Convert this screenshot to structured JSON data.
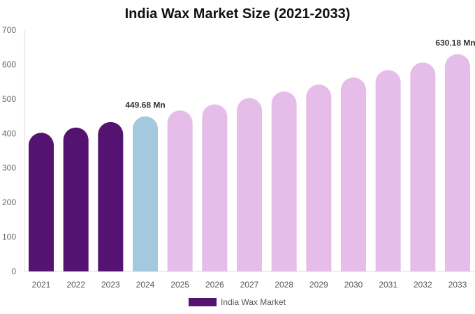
{
  "chart_data": {
    "type": "bar",
    "title": "India Wax Market Size (2021-2033)",
    "xlabel": "",
    "ylabel": "",
    "ylim": [
      0,
      700
    ],
    "yticks": [
      0,
      100,
      200,
      300,
      400,
      500,
      600,
      700
    ],
    "grid": false,
    "legend_position": "bottom",
    "categories": [
      "2021",
      "2022",
      "2023",
      "2024",
      "2025",
      "2026",
      "2027",
      "2028",
      "2029",
      "2030",
      "2031",
      "2032",
      "2033"
    ],
    "series": [
      {
        "name": "India Wax Market",
        "values": [
          402.0,
          417.3,
          433.2,
          449.68,
          466.8,
          484.5,
          502.9,
          522.0,
          541.9,
          562.5,
          583.9,
          606.0,
          630.18
        ]
      }
    ],
    "data_labels": [
      {
        "category": "2024",
        "text": "449.68 Mn"
      },
      {
        "category": "2033",
        "text": "630.18 Mn"
      }
    ],
    "colors": {
      "historical": "#541271",
      "base_year": "#a3c9de",
      "forecast": "#e6bde9",
      "legend": "#541271"
    }
  }
}
